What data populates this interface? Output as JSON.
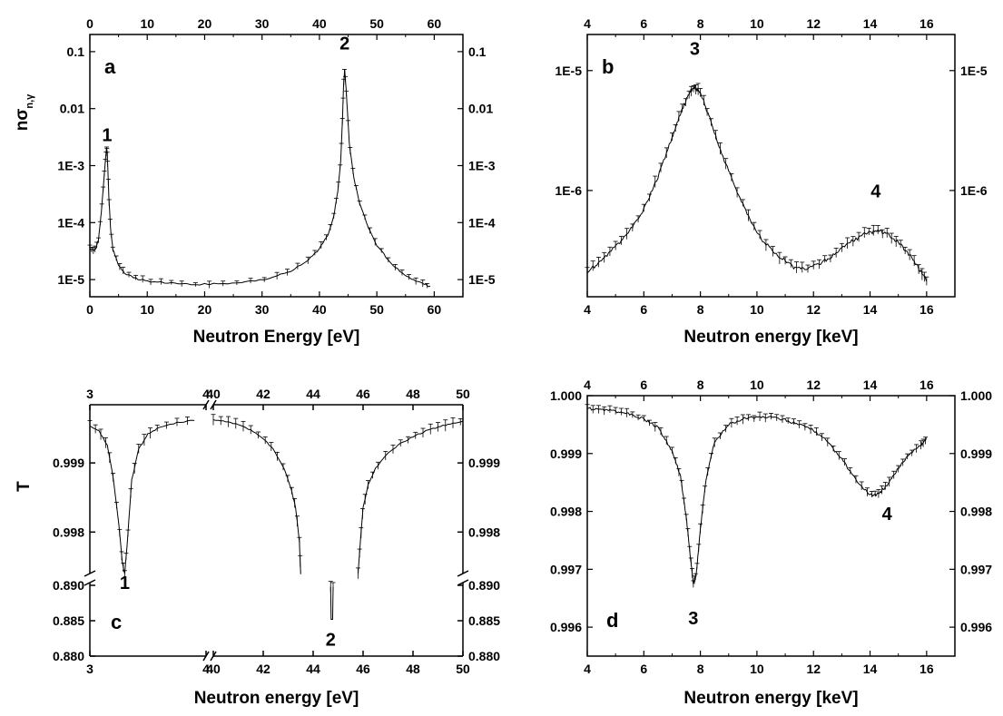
{
  "figure": {
    "ylabel_top": "nσ",
    "ylabel_top_sub": "n,γ",
    "ylabel_bottom": "T"
  },
  "chart_data": [
    {
      "id": "a",
      "type": "line",
      "panel_label": "a",
      "scale": "log",
      "xlabel": "Neutron Energy [eV]",
      "xlim": [
        0,
        65
      ],
      "ylim": [
        5e-06,
        0.2
      ],
      "xticks": [
        0,
        10,
        20,
        30,
        40,
        50,
        60
      ],
      "xtick_labels": [
        "0",
        "10",
        "20",
        "30",
        "40",
        "50",
        "60"
      ],
      "yticks": [
        1e-05,
        0.0001,
        0.001,
        0.01,
        0.1
      ],
      "ytick_labels": [
        "1E-5",
        "1E-4",
        "1E-3",
        "0.01",
        "0.1"
      ],
      "series": [
        {
          "x": [
            0,
            0.5,
            1,
            1.5,
            2,
            2.4,
            2.7,
            2.9,
            3.0,
            3.1,
            3.3,
            3.6,
            4,
            5,
            6,
            8,
            10,
            13,
            16,
            20,
            24,
            28,
            32,
            35,
            38,
            40,
            41.5,
            42.5,
            43.2,
            43.7,
            44.0,
            44.2,
            44.4,
            44.7,
            45.2,
            46,
            47,
            48.5,
            50,
            52,
            54,
            56,
            58,
            59.3
          ],
          "y": [
            3.5e-05,
            3.3e-05,
            3.4e-05,
            5e-05,
            0.00015,
            0.0005,
            0.0012,
            0.002,
            0.0018,
            0.0011,
            0.0003,
            8e-05,
            3.5e-05,
            1.8e-05,
            1.3e-05,
            1.05e-05,
            9.5e-06,
            8.8e-06,
            8.5e-06,
            8.3e-06,
            8.5e-06,
            9.2e-06,
            1.1e-05,
            1.4e-05,
            2.2e-05,
            3.5e-05,
            6e-05,
            0.00013,
            0.00035,
            0.0012,
            0.006,
            0.025,
            0.05,
            0.018,
            0.0025,
            0.0006,
            0.00022,
            8e-05,
            4e-05,
            2.2e-05,
            1.4e-05,
            1e-05,
            8.5e-06,
            7.5e-06
          ]
        }
      ],
      "peaks": [
        {
          "label": "1",
          "x": 3.0,
          "y": 0.0027
        },
        {
          "label": "2",
          "x": 44.4,
          "y": 0.11
        }
      ]
    },
    {
      "id": "b",
      "type": "line",
      "panel_label": "b",
      "scale": "log",
      "xlabel": "Neutron energy [keV]",
      "xlim": [
        4,
        17
      ],
      "ylim": [
        1.3e-07,
        2e-05
      ],
      "xticks": [
        4,
        6,
        8,
        10,
        12,
        14,
        16
      ],
      "xtick_labels": [
        "4",
        "6",
        "8",
        "10",
        "12",
        "14",
        "16"
      ],
      "yticks": [
        1e-06,
        1e-05
      ],
      "ytick_labels": [
        "1E-6",
        "1E-5"
      ],
      "series": [
        {
          "x": [
            4,
            4.5,
            5,
            5.5,
            6,
            6.5,
            7,
            7.3,
            7.6,
            7.8,
            8.0,
            8.3,
            8.7,
            9.2,
            9.7,
            10.2,
            10.8,
            11.3,
            11.8,
            12.3,
            12.8,
            13.3,
            13.8,
            14.2,
            14.6,
            15.0,
            15.4,
            15.8,
            16
          ],
          "y": [
            2.1e-07,
            2.6e-07,
            3.4e-07,
            4.6e-07,
            7e-07,
            1.3e-06,
            2.8e-06,
            4.4e-06,
            6.5e-06,
            7.3e-06,
            6.5e-06,
            4.2e-06,
            2.2e-06,
            1.1e-06,
            6e-07,
            3.8e-07,
            2.8e-07,
            2.3e-07,
            2.2e-07,
            2.5e-07,
            3e-07,
            3.7e-07,
            4.3e-07,
            4.6e-07,
            4.4e-07,
            3.7e-07,
            2.9e-07,
            2.1e-07,
            1.8e-07
          ]
        }
      ],
      "peaks": [
        {
          "label": "3",
          "x": 7.8,
          "y": 1.35e-05
        },
        {
          "label": "4",
          "x": 14.2,
          "y": 8.8e-07
        }
      ]
    },
    {
      "id": "c",
      "type": "line",
      "panel_label": "c",
      "scale": "broken",
      "xlabel": "Neutron energy [eV]",
      "x_segments": [
        {
          "range": [
            3,
            4
          ],
          "ticks": [
            3,
            4
          ],
          "tick_labels": [
            "3",
            "4"
          ]
        },
        {
          "range": [
            40,
            50
          ],
          "ticks": [
            40,
            42,
            44,
            46,
            48,
            50
          ],
          "tick_labels": [
            "40",
            "42",
            "44",
            "46",
            "48",
            "50"
          ]
        }
      ],
      "y_segments": [
        {
          "range": [
            0.88,
            0.89
          ],
          "ticks": [
            0.88,
            0.885,
            0.89
          ],
          "tick_labels": [
            "0.880",
            "0.885",
            "0.890"
          ]
        },
        {
          "range": [
            0.9974,
            0.99975
          ],
          "ticks": [
            0.998,
            0.999
          ],
          "tick_labels": [
            "0.998",
            "0.999"
          ]
        }
      ],
      "series": [
        {
          "x": [
            3.0,
            3.08,
            3.15,
            3.2,
            3.25,
            3.28,
            3.3,
            3.32,
            3.36,
            3.42,
            3.5,
            3.6,
            3.75,
            3.9
          ],
          "y": [
            0.99953,
            0.99946,
            0.99925,
            0.9988,
            0.9981,
            0.99755,
            0.9974,
            0.9978,
            0.99875,
            0.9992,
            0.99942,
            0.99952,
            0.99958,
            0.99962
          ]
        },
        {
          "x": [
            40,
            40.5,
            41,
            41.5,
            42,
            42.4,
            42.8,
            43.1,
            43.3,
            43.45,
            43.5
          ],
          "y": [
            0.99962,
            0.9996,
            0.99955,
            0.99948,
            0.99935,
            0.9992,
            0.99895,
            0.99865,
            0.99835,
            0.99785,
            0.9974
          ]
        },
        {
          "x": [
            44.7,
            44.72,
            44.78,
            44.8
          ],
          "y": [
            0.8898,
            0.8852,
            0.8852,
            0.8898
          ]
        },
        {
          "x": [
            45.8,
            45.9,
            46.0,
            46.2,
            46.5,
            47,
            47.5,
            48,
            48.5,
            49,
            49.5,
            50
          ],
          "y": [
            0.9974,
            0.9979,
            0.99835,
            0.99868,
            0.99892,
            0.99915,
            0.99928,
            0.99938,
            0.99946,
            0.99952,
            0.99957,
            0.9996
          ]
        }
      ],
      "peaks": [
        {
          "label": "1",
          "x": 3.3,
          "y": 0.8895
        },
        {
          "label": "2",
          "x": 44.7,
          "y": 0.8815
        }
      ]
    },
    {
      "id": "d",
      "type": "line",
      "panel_label": "d",
      "scale": "linear",
      "xlabel": "Neutron energy [keV]",
      "xlim": [
        4,
        17
      ],
      "ylim": [
        0.9955,
        1.0
      ],
      "xticks": [
        4,
        6,
        8,
        10,
        12,
        14,
        16
      ],
      "xtick_labels": [
        "4",
        "6",
        "8",
        "10",
        "12",
        "14",
        "16"
      ],
      "yticks": [
        0.996,
        0.997,
        0.998,
        0.999,
        1.0
      ],
      "ytick_labels": [
        "0.996",
        "0.997",
        "0.998",
        "0.999",
        "1.000"
      ],
      "series": [
        {
          "x": [
            4,
            4.5,
            5,
            5.5,
            6,
            6.5,
            7,
            7.3,
            7.5,
            7.65,
            7.75,
            7.85,
            8.0,
            8.2,
            8.5,
            9,
            9.5,
            10,
            10.5,
            11,
            11.5,
            12,
            12.5,
            13,
            13.5,
            14,
            14.3,
            14.6,
            15,
            15.4,
            15.8,
            16
          ],
          "y": [
            0.99978,
            0.99976,
            0.99973,
            0.99968,
            0.9996,
            0.99945,
            0.99905,
            0.9986,
            0.9979,
            0.9972,
            0.99675,
            0.9969,
            0.9977,
            0.99855,
            0.9992,
            0.9995,
            0.9996,
            0.99963,
            0.99962,
            0.99958,
            0.9995,
            0.9994,
            0.9992,
            0.9989,
            0.99855,
            0.99828,
            0.9983,
            0.99845,
            0.99875,
            0.999,
            0.99915,
            0.99925
          ]
        }
      ],
      "peaks": [
        {
          "label": "3",
          "x": 7.75,
          "y": 0.99605
        },
        {
          "label": "4",
          "x": 14.6,
          "y": 0.99785
        }
      ]
    }
  ]
}
